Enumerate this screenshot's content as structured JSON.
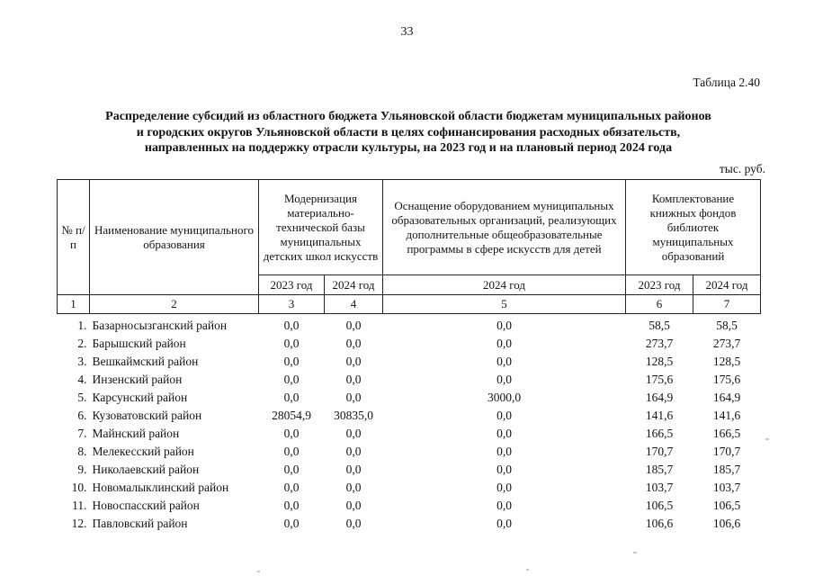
{
  "page": {
    "number": "33",
    "table_label": "Таблица 2.40",
    "title_lines": [
      "Распределение субсидий из областного бюджета Ульяновской области бюджетам муниципальных районов",
      "и городских округов Ульяновской области в целях софинансирования расходных обязательств,",
      "направленных на поддержку отрасли культуры, на 2023 год и на плановый период 2024 года"
    ],
    "units": "тыс. руб."
  },
  "table": {
    "header": {
      "col_num": "№ п/п",
      "col_name": "Наименование муниципального образования",
      "col_modernization": "Модернизация материально-технической базы муниципальных детских школ искусств",
      "col_equipment": "Оснащение оборудованием муниципальных образовательных организаций, реализующих дополнительные общеобразовательные программы в сфере искусств для детей",
      "col_books": "Комплектование книжных фондов библиотек муниципальных образований",
      "years": [
        "2023 год",
        "2024 год",
        "2024 год",
        "2023 год",
        "2024 год"
      ],
      "col_numbers": [
        "1",
        "2",
        "3",
        "4",
        "5",
        "6",
        "7"
      ]
    },
    "rows": [
      {
        "num": "1.",
        "name": "Базарносызганский район",
        "values": [
          "0,0",
          "0,0",
          "0,0",
          "58,5",
          "58,5"
        ]
      },
      {
        "num": "2.",
        "name": "Барышский район",
        "values": [
          "0,0",
          "0,0",
          "0,0",
          "273,7",
          "273,7"
        ]
      },
      {
        "num": "3.",
        "name": "Вешкаймский район",
        "values": [
          "0,0",
          "0,0",
          "0,0",
          "128,5",
          "128,5"
        ]
      },
      {
        "num": "4.",
        "name": "Инзенский район",
        "values": [
          "0,0",
          "0,0",
          "0,0",
          "175,6",
          "175,6"
        ]
      },
      {
        "num": "5.",
        "name": "Карсунский район",
        "values": [
          "0,0",
          "0,0",
          "3000,0",
          "164,9",
          "164,9"
        ]
      },
      {
        "num": "6.",
        "name": "Кузоватовский район",
        "values": [
          "28054,9",
          "30835,0",
          "0,0",
          "141,6",
          "141,6"
        ]
      },
      {
        "num": "7.",
        "name": "Майнский район",
        "values": [
          "0,0",
          "0,0",
          "0,0",
          "166,5",
          "166,5"
        ]
      },
      {
        "num": "8.",
        "name": "Мелекесский район",
        "values": [
          "0,0",
          "0,0",
          "0,0",
          "170,7",
          "170,7"
        ]
      },
      {
        "num": "9.",
        "name": "Николаевский район",
        "values": [
          "0,0",
          "0,0",
          "0,0",
          "185,7",
          "185,7"
        ]
      },
      {
        "num": "10.",
        "name": "Новомалыклинский район",
        "values": [
          "0,0",
          "0,0",
          "0,0",
          "103,7",
          "103,7"
        ]
      },
      {
        "num": "11.",
        "name": "Новоспасский район",
        "values": [
          "0,0",
          "0,0",
          "0,0",
          "106,5",
          "106,5"
        ]
      },
      {
        "num": "12.",
        "name": "Павловский район",
        "values": [
          "0,0",
          "0,0",
          "0,0",
          "106,6",
          "106,6"
        ]
      }
    ]
  }
}
